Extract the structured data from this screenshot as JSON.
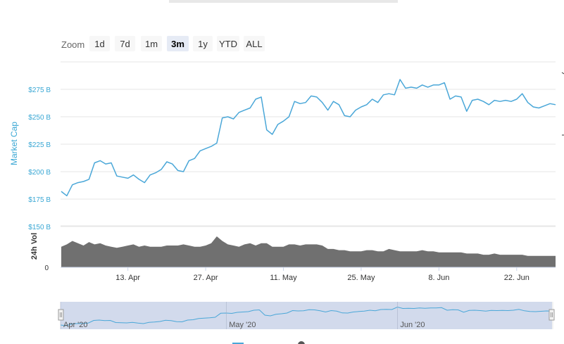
{
  "zoom": {
    "label": "Zoom",
    "buttons": [
      "1d",
      "7d",
      "1m",
      "3m",
      "1y",
      "YTD",
      "ALL"
    ],
    "active": "3m"
  },
  "colors": {
    "market_cap": "#4aa7d8",
    "volume": "#707070",
    "navigator_fill": "#ccd6eb"
  },
  "chart_data": {
    "type": "line",
    "x": [
      "Apr 1",
      "Apr 2",
      "Apr 3",
      "Apr 4",
      "Apr 5",
      "Apr 6",
      "Apr 7",
      "Apr 8",
      "Apr 9",
      "Apr 10",
      "Apr 11",
      "Apr 12",
      "Apr 13",
      "Apr 14",
      "Apr 15",
      "Apr 16",
      "Apr 17",
      "Apr 18",
      "Apr 19",
      "Apr 20",
      "Apr 21",
      "Apr 22",
      "Apr 23",
      "Apr 24",
      "Apr 25",
      "Apr 26",
      "Apr 27",
      "Apr 28",
      "Apr 29",
      "Apr 30",
      "May 1",
      "May 2",
      "May 3",
      "May 4",
      "May 5",
      "May 6",
      "May 7",
      "May 8",
      "May 9",
      "May 10",
      "May 11",
      "May 12",
      "May 13",
      "May 14",
      "May 15",
      "May 16",
      "May 17",
      "May 18",
      "May 19",
      "May 20",
      "May 21",
      "May 22",
      "May 23",
      "May 24",
      "May 25",
      "May 26",
      "May 27",
      "May 28",
      "May 29",
      "May 30",
      "May 31",
      "Jun 1",
      "Jun 2",
      "Jun 3",
      "Jun 4",
      "Jun 5",
      "Jun 6",
      "Jun 7",
      "Jun 8",
      "Jun 9",
      "Jun 10",
      "Jun 11",
      "Jun 12",
      "Jun 13",
      "Jun 14",
      "Jun 15",
      "Jun 16",
      "Jun 17",
      "Jun 18",
      "Jun 19",
      "Jun 20",
      "Jun 21",
      "Jun 22",
      "Jun 23",
      "Jun 24",
      "Jun 25",
      "Jun 26",
      "Jun 27",
      "Jun 28",
      "Jun 29"
    ],
    "series": [
      {
        "name": "Market Cap",
        "axis": "y",
        "values": [
          182,
          178,
          188,
          190,
          191,
          193,
          208,
          210,
          207,
          208,
          196,
          195,
          194,
          197,
          193,
          190,
          197,
          199,
          202,
          209,
          207,
          201,
          200,
          210,
          212,
          219,
          221,
          223,
          226,
          249,
          250,
          248,
          254,
          256,
          258,
          266,
          268,
          238,
          234,
          243,
          246,
          250,
          264,
          262,
          263,
          269,
          268,
          263,
          256,
          264,
          261,
          251,
          250,
          256,
          259,
          261,
          266,
          263,
          270,
          271,
          270,
          284,
          276,
          277,
          276,
          279,
          277,
          279,
          279,
          281,
          266,
          269,
          268,
          255,
          265,
          266,
          264,
          261,
          265,
          264,
          265,
          264,
          266,
          271,
          263,
          259,
          258,
          260,
          262,
          261
        ]
      },
      {
        "name": "24h Vol",
        "axis": "vol",
        "values": [
          18,
          20,
          23,
          21,
          19,
          22,
          20,
          21,
          19,
          18,
          17,
          18,
          19,
          20,
          18,
          19,
          18,
          18,
          18,
          19,
          19,
          19,
          20,
          19,
          18,
          18,
          19,
          21,
          27,
          23,
          20,
          19,
          18,
          20,
          21,
          19,
          21,
          21,
          18,
          18,
          18,
          20,
          20,
          19,
          20,
          20,
          20,
          19,
          16,
          16,
          15,
          15,
          14,
          14,
          14,
          15,
          15,
          14,
          14,
          16,
          15,
          14,
          14,
          14,
          14,
          15,
          14,
          14,
          13,
          13,
          13,
          13,
          13,
          12,
          12,
          12,
          11,
          11,
          12,
          11,
          11,
          11,
          11,
          11,
          10,
          10,
          10,
          10,
          10,
          10
        ]
      }
    ],
    "y_ticks": [
      "$150 B",
      "$175 B",
      "$200 B",
      "$225 B",
      "$250 B",
      "$275 B"
    ],
    "ylim": [
      150,
      300
    ],
    "ylabel": "Market Cap",
    "vol_label": "24h Vol",
    "vol_ticks": [
      "0"
    ],
    "vol_ylim": [
      0,
      30
    ],
    "x_ticks": [
      "13. Apr",
      "27. Apr",
      "11. May",
      "25. May",
      "8. Jun",
      "22. Jun"
    ],
    "navigator_labels": [
      "Apr '20",
      "May '20",
      "Jun '20"
    ],
    "grid": true
  }
}
